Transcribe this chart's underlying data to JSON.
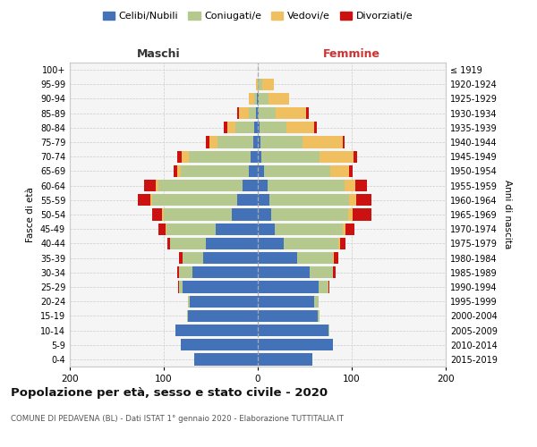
{
  "age_groups": [
    "100+",
    "95-99",
    "90-94",
    "85-89",
    "80-84",
    "75-79",
    "70-74",
    "65-69",
    "60-64",
    "55-59",
    "50-54",
    "45-49",
    "40-44",
    "35-39",
    "30-34",
    "25-29",
    "20-24",
    "15-19",
    "10-14",
    "5-9",
    "0-4"
  ],
  "birth_years": [
    "≤ 1919",
    "1920-1924",
    "1925-1929",
    "1930-1934",
    "1935-1939",
    "1940-1944",
    "1945-1949",
    "1950-1954",
    "1955-1959",
    "1960-1964",
    "1965-1969",
    "1970-1974",
    "1975-1979",
    "1980-1984",
    "1985-1989",
    "1990-1994",
    "1995-1999",
    "2000-2004",
    "2005-2009",
    "2010-2014",
    "2015-2019"
  ],
  "colors": {
    "celibe": "#4472b8",
    "coniugato": "#b5c98e",
    "vedovo": "#f0c060",
    "divorziato": "#cc1111"
  },
  "maschi": {
    "celibe": [
      0,
      0,
      1,
      2,
      4,
      5,
      8,
      10,
      16,
      22,
      28,
      45,
      55,
      58,
      70,
      80,
      72,
      74,
      88,
      82,
      68
    ],
    "coniugato": [
      0,
      0,
      3,
      8,
      20,
      38,
      65,
      72,
      90,
      90,
      72,
      52,
      38,
      22,
      14,
      4,
      2,
      1,
      0,
      0,
      0
    ],
    "vedovo": [
      0,
      2,
      6,
      10,
      8,
      8,
      8,
      4,
      3,
      2,
      2,
      1,
      0,
      0,
      0,
      0,
      0,
      0,
      0,
      0,
      0
    ],
    "divorziato": [
      0,
      0,
      0,
      2,
      4,
      4,
      5,
      4,
      12,
      14,
      10,
      8,
      3,
      4,
      2,
      1,
      0,
      0,
      0,
      0,
      0
    ]
  },
  "femmine": {
    "nubile": [
      0,
      0,
      1,
      1,
      2,
      3,
      4,
      7,
      10,
      12,
      14,
      18,
      28,
      42,
      55,
      65,
      60,
      64,
      75,
      80,
      58
    ],
    "coniugata": [
      0,
      5,
      10,
      18,
      28,
      45,
      62,
      70,
      82,
      85,
      82,
      72,
      58,
      38,
      25,
      10,
      5,
      2,
      1,
      0,
      0
    ],
    "vedova": [
      0,
      12,
      22,
      32,
      30,
      42,
      36,
      20,
      12,
      8,
      5,
      3,
      2,
      1,
      0,
      0,
      0,
      0,
      0,
      0,
      0
    ],
    "divorziata": [
      0,
      0,
      0,
      3,
      3,
      2,
      4,
      4,
      12,
      16,
      20,
      10,
      5,
      5,
      3,
      1,
      0,
      0,
      0,
      0,
      0
    ]
  },
  "title": "Popolazione per età, sesso e stato civile - 2020",
  "subtitle": "COMUNE DI PEDAVENA (BL) - Dati ISTAT 1° gennaio 2020 - Elaborazione TUTTITALIA.IT",
  "label_maschi": "Maschi",
  "label_femmine": "Femmine",
  "ylabel_left": "Fasce di età",
  "ylabel_right": "Anni di nascita",
  "xlim": 200,
  "legend_labels": [
    "Celibi/Nubili",
    "Coniugati/e",
    "Vedovi/e",
    "Divorziati/e"
  ]
}
